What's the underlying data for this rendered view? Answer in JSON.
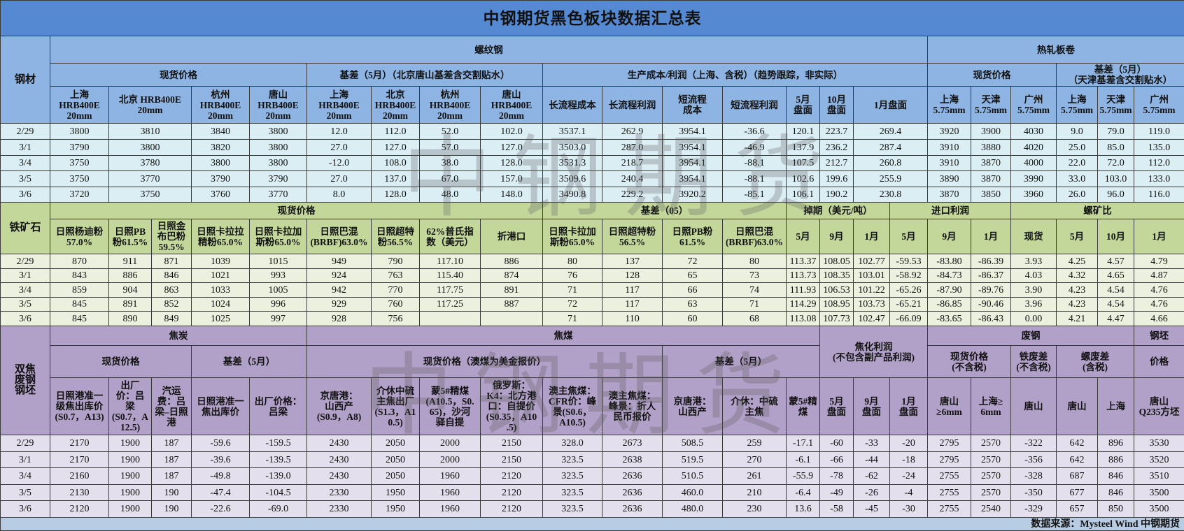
{
  "title": "中钢期货黑色板块数据汇总表",
  "watermark": "中钢期货",
  "colors": {
    "title_bar": "#5589d2",
    "rebar_header": "#8db4e2",
    "rebar_row": "#dbeef4",
    "iron_header": "#c4d79b",
    "iron_row": "#ebf1de",
    "coke_header": "#b1a0c7",
    "coke_row": "#e4dfec",
    "footer": "#b8cce4"
  },
  "rebar": {
    "side_label": "钢材",
    "group_rebar": "螺纹钢",
    "group_hrc": "热轧板卷",
    "sub": {
      "spot": "现货价格",
      "basis": "基差（5月）（北京唐山基差含交割贴水）",
      "cost": "生产成本/利润（上海、含税）（趋势跟踪，非实际）",
      "hrc_spot": "现货价格",
      "hrc_basis": "基差（5月）\n（天津基差含交割贴水）"
    },
    "columns": [
      "上海\nHRB400E\n20mm",
      "北京 HRB400E\n20mm",
      "杭州\nHRB400E\n20mm",
      "唐山\nHRB400E\n20mm",
      "上海\nHRB400E\n20mm",
      "北京\nHRB400E\n20mm",
      "杭州\nHRB400E\n20mm",
      "唐山\nHRB400E\n20mm",
      "长流程成本",
      "长流程利润",
      "短流程\n成本",
      "短流程利润",
      "5月\n盘面",
      "10月\n盘面",
      "1月盘面",
      "上海\n5.75mm",
      "天津\n5.75mm",
      "广州\n5.75mm",
      "上海\n5.75mm",
      "天津\n5.75mm",
      "广州\n5.75mm"
    ],
    "rows": [
      {
        "date": "2/29",
        "values": [
          "3800",
          "3810",
          "3840",
          "3800",
          "12.0",
          "112.0",
          "52.0",
          "102.0",
          "3537.1",
          "262.9",
          "3954.1",
          "-36.6",
          "120.1",
          "223.7",
          "269.4",
          "3920",
          "3900",
          "4030",
          "9.0",
          "79.0",
          "119.0"
        ]
      },
      {
        "date": "3/1",
        "values": [
          "3790",
          "3800",
          "3820",
          "3800",
          "27.0",
          "127.0",
          "57.0",
          "127.0",
          "3503.0",
          "287.0",
          "3954.1",
          "-46.9",
          "137.9",
          "236.2",
          "287.4",
          "3910",
          "3880",
          "4020",
          "25.0",
          "85.0",
          "135.0"
        ]
      },
      {
        "date": "3/4",
        "values": [
          "3750",
          "3780",
          "3800",
          "3800",
          "-12.0",
          "108.0",
          "38.0",
          "128.0",
          "3531.3",
          "218.7",
          "3954.1",
          "-88.1",
          "107.5",
          "212.7",
          "260.8",
          "3910",
          "3870",
          "4000",
          "22.0",
          "72.0",
          "112.0"
        ]
      },
      {
        "date": "3/5",
        "values": [
          "3750",
          "3770",
          "3790",
          "3790",
          "27.0",
          "137.0",
          "67.0",
          "157.0",
          "3509.6",
          "240.4",
          "3954.1",
          "-88.1",
          "102.6",
          "199.6",
          "255.9",
          "3890",
          "3870",
          "3990",
          "33.0",
          "103.0",
          "133.0"
        ]
      },
      {
        "date": "3/6",
        "values": [
          "3720",
          "3750",
          "3760",
          "3770",
          "8.0",
          "128.0",
          "48.0",
          "148.0",
          "3490.8",
          "229.2",
          "3920.2",
          "-85.1",
          "106.1",
          "190.2",
          "230.8",
          "3870",
          "3850",
          "3960",
          "26.0",
          "96.0",
          "116.0"
        ]
      }
    ]
  },
  "iron": {
    "side_label": "铁矿石",
    "groups": [
      "现货价格",
      "基差（05）",
      "掉期（美元/吨）",
      "进口利润",
      "螺矿比"
    ],
    "columns": [
      "日照杨迪粉\n57.0%",
      "日照PB\n粉61.5%",
      "日照金\n布巴粉\n59.5%",
      "日照卡拉拉\n精粉65.0%",
      "日照卡拉加\n斯粉65.0%",
      "日照巴混\n(BRBF)63.0%",
      "日照超特\n粉56.5%",
      "62%普氏指\n数（美元）",
      "折港口",
      "日照卡拉加\n斯粉65.0%",
      "日照超特粉\n56.5%",
      "日照PB粉\n61.5%",
      "日照巴混\n(BRBF)63.0%",
      "5月",
      "9月",
      "1月",
      "5月",
      "9月",
      "1月",
      "现货",
      "5月",
      "10月",
      "1月"
    ],
    "rows": [
      {
        "date": "2/29",
        "values": [
          "870",
          "911",
          "871",
          "1039",
          "1015",
          "949",
          "790",
          "117.10",
          "886",
          "80",
          "137",
          "72",
          "80",
          "113.37",
          "108.05",
          "102.77",
          "-59.53",
          "-83.80",
          "-86.39",
          "3.93",
          "4.25",
          "4.57",
          "4.79"
        ]
      },
      {
        "date": "3/1",
        "values": [
          "843",
          "886",
          "846",
          "1021",
          "993",
          "924",
          "763",
          "115.40",
          "874",
          "76",
          "128",
          "65",
          "73",
          "113.73",
          "108.35",
          "103.01",
          "-58.92",
          "-84.73",
          "-86.37",
          "4.03",
          "4.32",
          "4.65",
          "4.87"
        ]
      },
      {
        "date": "3/4",
        "values": [
          "859",
          "904",
          "863",
          "1033",
          "1005",
          "942",
          "770",
          "117.75",
          "891",
          "71",
          "117",
          "66",
          "74",
          "111.93",
          "106.53",
          "101.22",
          "-65.26",
          "-87.90",
          "-89.76",
          "3.90",
          "4.23",
          "4.54",
          "4.76"
        ]
      },
      {
        "date": "3/5",
        "values": [
          "845",
          "891",
          "852",
          "1024",
          "996",
          "929",
          "760",
          "117.25",
          "887",
          "72",
          "117",
          "63",
          "71",
          "114.29",
          "108.95",
          "103.73",
          "-65.21",
          "-86.85",
          "-90.46",
          "3.96",
          "4.23",
          "4.54",
          "4.76"
        ]
      },
      {
        "date": "3/6",
        "values": [
          "845",
          "890",
          "849",
          "1025",
          "997",
          "928",
          "756",
          "",
          "",
          "71",
          "110",
          "60",
          "68",
          "113.08",
          "107.73",
          "102.47",
          "-66.09",
          "-83.65",
          "-86.43",
          "0.00",
          "4.21",
          "4.47",
          "4.66"
        ]
      }
    ]
  },
  "coke": {
    "side_label": "双焦\n废钢\n钢坯",
    "group_coke": "焦炭",
    "group_coal": "焦煤",
    "group_profit": "焦化利润\n(不包含副产品利润)",
    "group_scrap": "废钢",
    "group_billet": "钢坯",
    "sub": {
      "coke_spot": "现货价格",
      "coke_basis": "基差（5月）",
      "coal_spot": "现货价格（澳煤为美金报价）",
      "coal_basis": "基差（5月）",
      "scrap_spot": "现货价格\n(不含税)",
      "iron_scrap": "铁废差\n(不含税)",
      "rebar_scrap": "螺废差\n(含税)",
      "billet_price": "价格"
    },
    "columns": [
      "日照港准一\n级焦出库价\n(S0.7，A13)",
      "出厂\n价：吕\n梁\n(S0.7，A\n12.5)",
      "汽运\n费：吕\n梁–日照\n港",
      "日照港准一\n焦出库价",
      "出厂价格：\n吕梁",
      "京唐港：\n山西产\n(S0.9，A8)",
      "介休中硫\n主焦出厂\n(S1.3，A1\n0.5)",
      "蒙5#精煤\n(A10.5，S0.\n65)，沙河\n驿自提",
      "俄罗斯：\nK4：北方港\n口：自提价\n(S0.35，A10\n.5)",
      "澳主焦煤：\nCFR价：峰\n景(S0.6，\nA10.5)",
      "澳主焦煤：\n峰景：折人\n民币报价",
      "京唐港：\n山西产",
      "介休：中硫\n主焦",
      "蒙5#精\n煤",
      "5月\n盘面",
      "9月\n盘面",
      "1月\n盘面",
      "唐山\n≥6mm",
      "上海≥\n6mm",
      "唐山",
      "唐山",
      "上海",
      "唐山\nQ235方坯"
    ],
    "rows": [
      {
        "date": "2/29",
        "values": [
          "2170",
          "1900",
          "187",
          "-59.6",
          "-159.5",
          "2430",
          "2050",
          "2000",
          "2150",
          "328.0",
          "2673",
          "508.5",
          "259",
          "-17.1",
          "-60",
          "-33",
          "-20",
          "2795",
          "2570",
          "-322",
          "642",
          "896",
          "3530"
        ]
      },
      {
        "date": "3/1",
        "values": [
          "2170",
          "1900",
          "187",
          "-39.6",
          "-139.5",
          "2430",
          "2050",
          "2000",
          "2150",
          "323.5",
          "2638",
          "519.5",
          "270",
          "-6.1",
          "-66",
          "-44",
          "-18",
          "2795",
          "2570",
          "-356",
          "642",
          "886",
          "3520"
        ]
      },
      {
        "date": "3/4",
        "values": [
          "2160",
          "1900",
          "187",
          "-49.8",
          "-139.0",
          "2430",
          "2050",
          "1960",
          "2120",
          "323.5",
          "2636",
          "510.5",
          "261",
          "-55.9",
          "-78",
          "-62",
          "-24",
          "2755",
          "2570",
          "-328",
          "687",
          "846",
          "3510"
        ]
      },
      {
        "date": "3/5",
        "values": [
          "2130",
          "1900",
          "190",
          "-47.4",
          "-104.5",
          "2330",
          "1950",
          "1960",
          "2120",
          "323.5",
          "2636",
          "460.0",
          "210",
          "-6.4",
          "-49",
          "-26",
          "-4",
          "2755",
          "2570",
          "-350",
          "677",
          "846",
          "3500"
        ]
      },
      {
        "date": "3/6",
        "values": [
          "2120",
          "1900",
          "190",
          "-22.6",
          "-69.0",
          "2330",
          "1950",
          "1960",
          "2120",
          "323.5",
          "2636",
          "480.0",
          "230",
          "13.6",
          "-58",
          "-45",
          "-30",
          "2755",
          "2540",
          "-329",
          "657",
          "850",
          "3500"
        ]
      }
    ]
  },
  "footer": "数据来源：Mysteel Wind 中钢期货"
}
